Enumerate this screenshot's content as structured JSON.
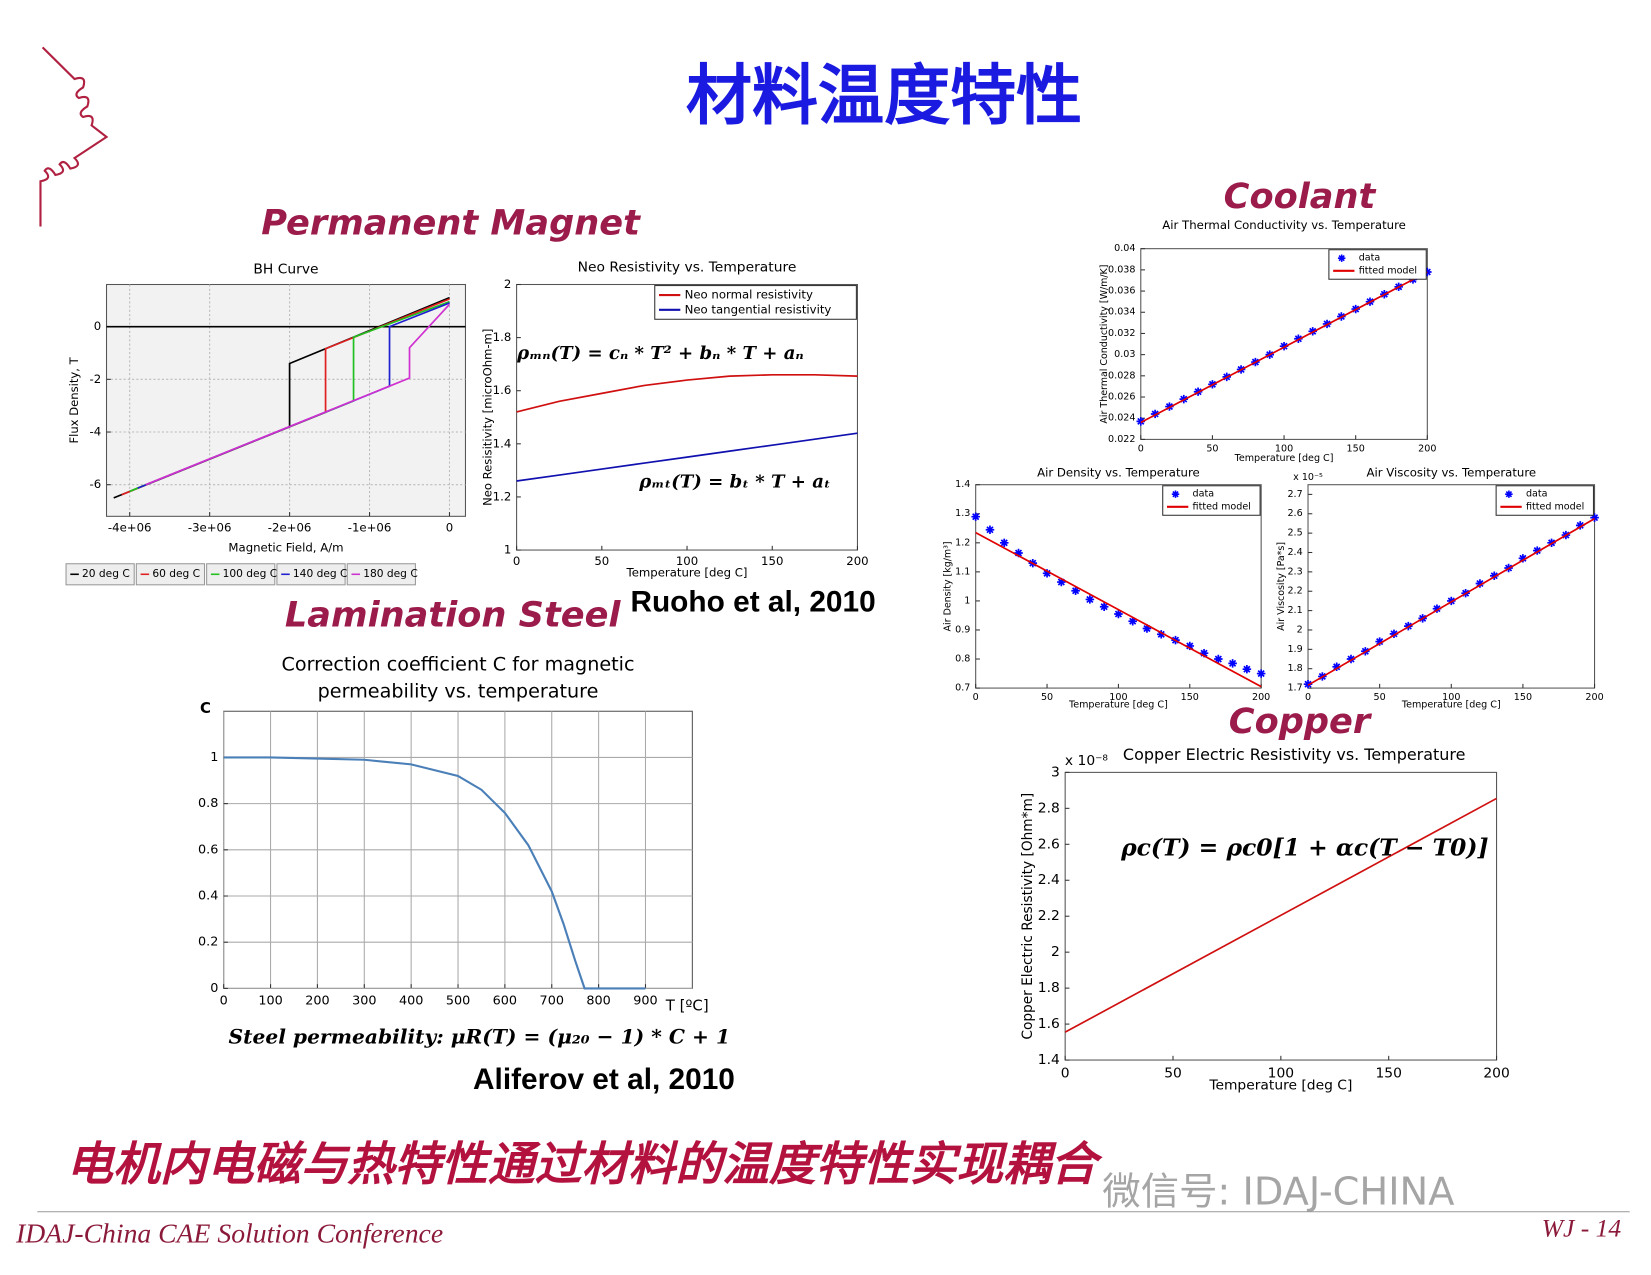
{
  "slide": {
    "title": "材料温度特性",
    "headings": [
      "Permanent Magnet",
      "Coolant",
      "Lamination Steel",
      "Copper"
    ],
    "citations": [
      "Ruoho et al, 2010",
      "Aliferov et al, 2010"
    ],
    "conclusion": "电机内电磁与热特性通过材料的温度特性实现耦合",
    "watermark": "微信号: IDAJ-CHINA",
    "footer": "IDAJ-China CAE Solution Conference",
    "page": "WJ - 14"
  },
  "chart_data": [
    {
      "type": "line",
      "title": "BH Curve",
      "xlabel": "Magnetic Field, A/m",
      "ylabel": "Flux Density, T",
      "xlim": [
        -4290000,
        200000
      ],
      "ylim": [
        -7.2,
        1.6
      ],
      "xticks": [
        {
          "value": -4000000,
          "label": "-4e+06"
        },
        {
          "value": -3000000,
          "label": "-3e+06"
        },
        {
          "value": -2000000,
          "label": "-2e+06"
        },
        {
          "value": -1000000,
          "label": "-1e+06"
        },
        0
      ],
      "yticks": [
        -6,
        -4,
        -2,
        0
      ],
      "grid": true,
      "legend": "bottom",
      "series": [
        {
          "name": "20 deg C",
          "color": "#000000",
          "x": [
            -4200000,
            -2000000,
            -2000000,
            0
          ],
          "values": [
            -6.5,
            -3.8,
            -1.4,
            1.1
          ]
        },
        {
          "name": "60 deg C",
          "color": "#e02020",
          "x": [
            -4100000,
            -1550000,
            -1550000,
            0
          ],
          "values": [
            -6.38,
            -3.25,
            -0.84,
            1.05
          ]
        },
        {
          "name": "100 deg C",
          "color": "#20c020",
          "x": [
            -4000000,
            -1200000,
            -1200000,
            0
          ],
          "values": [
            -6.25,
            -2.82,
            -0.4,
            0.95
          ]
        },
        {
          "name": "140 deg C",
          "color": "#2020d0",
          "x": [
            -3900000,
            -750000,
            -750000,
            0
          ],
          "values": [
            -6.13,
            -2.26,
            0,
            0.9
          ]
        },
        {
          "name": "180 deg C",
          "color": "#d030d0",
          "x": [
            -3800000,
            -500000,
            -500000,
            0
          ],
          "values": [
            -6.0,
            -1.95,
            -0.8,
            0.85
          ]
        }
      ]
    },
    {
      "type": "line",
      "title": "Neo Resistivity vs. Temperature",
      "xlabel": "Temperature [deg C]",
      "ylabel": "Neo Resisitivity [microOhm-m]",
      "xlim": [
        0,
        200
      ],
      "ylim": [
        1,
        2
      ],
      "xticks": [
        0,
        50,
        100,
        150,
        200
      ],
      "yticks": [
        1,
        1.2,
        1.4,
        1.6,
        1.8,
        2
      ],
      "grid": false,
      "legend": "top-right",
      "annotations": [
        "ρₘₙ(T) = cₙ * T² + bₙ * T + aₙ",
        "ρₘₜ(T) = bₜ * T + aₜ"
      ],
      "series": [
        {
          "name": "Neo normal resistivity",
          "color": "#d01010",
          "x": [
            0,
            25,
            50,
            75,
            100,
            125,
            150,
            175,
            200
          ],
          "values": [
            1.52,
            1.56,
            1.59,
            1.62,
            1.64,
            1.655,
            1.66,
            1.66,
            1.655
          ]
        },
        {
          "name": "Neo tangential resistivity",
          "color": "#1010b0",
          "x": [
            0,
            25,
            50,
            75,
            100,
            125,
            150,
            175,
            200
          ],
          "values": [
            1.26,
            1.2825,
            1.305,
            1.3275,
            1.35,
            1.3725,
            1.395,
            1.4175,
            1.44
          ]
        }
      ]
    },
    {
      "type": "line",
      "title": [
        "Correction coefficient C for magnetic",
        "permeability vs. temperature"
      ],
      "xlabel": "T [ºC]",
      "ylabel": "C",
      "xlim": [
        0,
        1000
      ],
      "ylim": [
        0,
        1.2
      ],
      "xticks": [
        0,
        100,
        200,
        300,
        400,
        500,
        600,
        700,
        800,
        900
      ],
      "yticks": [
        0,
        0.2,
        0.4,
        0.6,
        0.8,
        1
      ],
      "grid": true,
      "annotations": [
        "Steel permeability: μR(T) = (μ₂₀ − 1) * C + 1"
      ],
      "series": [
        {
          "color": "#4a7fb8",
          "x": [
            0,
            100,
            200,
            300,
            400,
            500,
            550,
            600,
            650,
            700,
            725,
            750,
            770,
            800,
            900
          ],
          "values": [
            1,
            1,
            0.995,
            0.99,
            0.97,
            0.92,
            0.86,
            0.76,
            0.62,
            0.42,
            0.28,
            0.12,
            0,
            0,
            0
          ]
        }
      ]
    },
    {
      "type": "line",
      "title": "Air Thermal Conductivity vs. Temperature",
      "xlabel": "Temperature [deg C]",
      "ylabel": "Air Thermal Conductivity [W/m/K]",
      "xlim": [
        0,
        200
      ],
      "ylim": [
        0.022,
        0.04
      ],
      "xticks": [
        0,
        50,
        100,
        150,
        200
      ],
      "yticks": [
        0.022,
        0.024,
        0.026,
        0.028,
        0.03,
        0.032,
        0.034,
        0.036,
        0.038,
        0.04
      ],
      "grid": false,
      "legend": "top-right",
      "series": [
        {
          "name": "data",
          "color": "#0000ff",
          "style": "markers",
          "x": [
            0,
            10,
            20,
            30,
            40,
            50,
            60,
            70,
            80,
            90,
            100,
            110,
            120,
            130,
            140,
            150,
            160,
            170,
            180,
            190,
            200
          ],
          "values": [
            0.0237,
            0.0244,
            0.0251,
            0.0258,
            0.0265,
            0.0272,
            0.0279,
            0.0286,
            0.0293,
            0.03,
            0.0308,
            0.0315,
            0.0322,
            0.0329,
            0.0336,
            0.0343,
            0.035,
            0.0357,
            0.0364,
            0.0371,
            0.0378
          ]
        },
        {
          "name": "fitted model",
          "color": "#e00000",
          "style": "line",
          "x": [
            0,
            200
          ],
          "values": [
            0.0236,
            0.0378
          ]
        }
      ]
    },
    {
      "type": "line",
      "title": "Air Density vs. Temperature",
      "xlabel": "Temperature [deg C]",
      "ylabel": "Air Density [kg/m³]",
      "xlim": [
        0,
        200
      ],
      "ylim": [
        0.7,
        1.4
      ],
      "xticks": [
        0,
        50,
        100,
        150,
        200
      ],
      "yticks": [
        0.7,
        0.8,
        0.9,
        1,
        1.1,
        1.2,
        1.3,
        1.4
      ],
      "grid": false,
      "legend": "top-right",
      "series": [
        {
          "name": "data",
          "color": "#0000ff",
          "style": "markers",
          "x": [
            0,
            10,
            20,
            30,
            40,
            50,
            60,
            70,
            80,
            90,
            100,
            110,
            120,
            130,
            140,
            150,
            160,
            170,
            180,
            190,
            200
          ],
          "values": [
            1.29,
            1.245,
            1.2,
            1.165,
            1.13,
            1.095,
            1.065,
            1.035,
            1.005,
            0.98,
            0.955,
            0.93,
            0.905,
            0.885,
            0.865,
            0.845,
            0.82,
            0.8,
            0.785,
            0.765,
            0.75
          ]
        },
        {
          "name": "fitted model",
          "color": "#e00000",
          "style": "line",
          "x": [
            0,
            200
          ],
          "values": [
            1.235,
            0.705
          ]
        }
      ]
    },
    {
      "type": "line",
      "title": "Air Viscosity vs. Temperature",
      "xlabel": "Temperature [deg C]",
      "ylabel": "Air Viscosity [Pa*s]",
      "multiplier": "x 10⁻⁵",
      "xlim": [
        0,
        200
      ],
      "ylim": [
        1.7,
        2.75
      ],
      "xticks": [
        0,
        50,
        100,
        150,
        200
      ],
      "yticks": [
        1.7,
        1.8,
        1.9,
        2,
        2.1,
        2.2,
        2.3,
        2.4,
        2.5,
        2.6,
        2.7
      ],
      "grid": false,
      "legend": "top-right",
      "series": [
        {
          "name": "data",
          "color": "#0000ff",
          "style": "markers",
          "x": [
            0,
            10,
            20,
            30,
            40,
            50,
            60,
            70,
            80,
            90,
            100,
            110,
            120,
            130,
            140,
            150,
            160,
            170,
            180,
            190,
            200
          ],
          "values": [
            1.72,
            1.76,
            1.81,
            1.85,
            1.89,
            1.94,
            1.98,
            2.02,
            2.06,
            2.11,
            2.15,
            2.19,
            2.24,
            2.28,
            2.32,
            2.37,
            2.41,
            2.45,
            2.49,
            2.54,
            2.58
          ]
        },
        {
          "name": "fitted model",
          "color": "#e00000",
          "style": "line",
          "x": [
            0,
            200
          ],
          "values": [
            1.715,
            2.575
          ]
        }
      ]
    },
    {
      "type": "line",
      "title": "Copper Electric Resistivity vs. Temperature",
      "xlabel": "Temperature [deg C]",
      "ylabel": "Copper Electric Resistivity [Ohm*m]",
      "multiplier": "x 10⁻⁸",
      "xlim": [
        0,
        200
      ],
      "ylim": [
        1.4,
        3
      ],
      "xticks": [
        0,
        50,
        100,
        150,
        200
      ],
      "yticks": [
        1.4,
        1.6,
        1.8,
        2,
        2.2,
        2.4,
        2.6,
        2.8,
        3
      ],
      "grid": false,
      "annotations": [
        "ρc(T) = ρc0[1 + αc(T − T0)]"
      ],
      "series": [
        {
          "color": "#d01010",
          "x": [
            0,
            200
          ],
          "values": [
            1.555,
            2.855
          ]
        }
      ]
    }
  ]
}
